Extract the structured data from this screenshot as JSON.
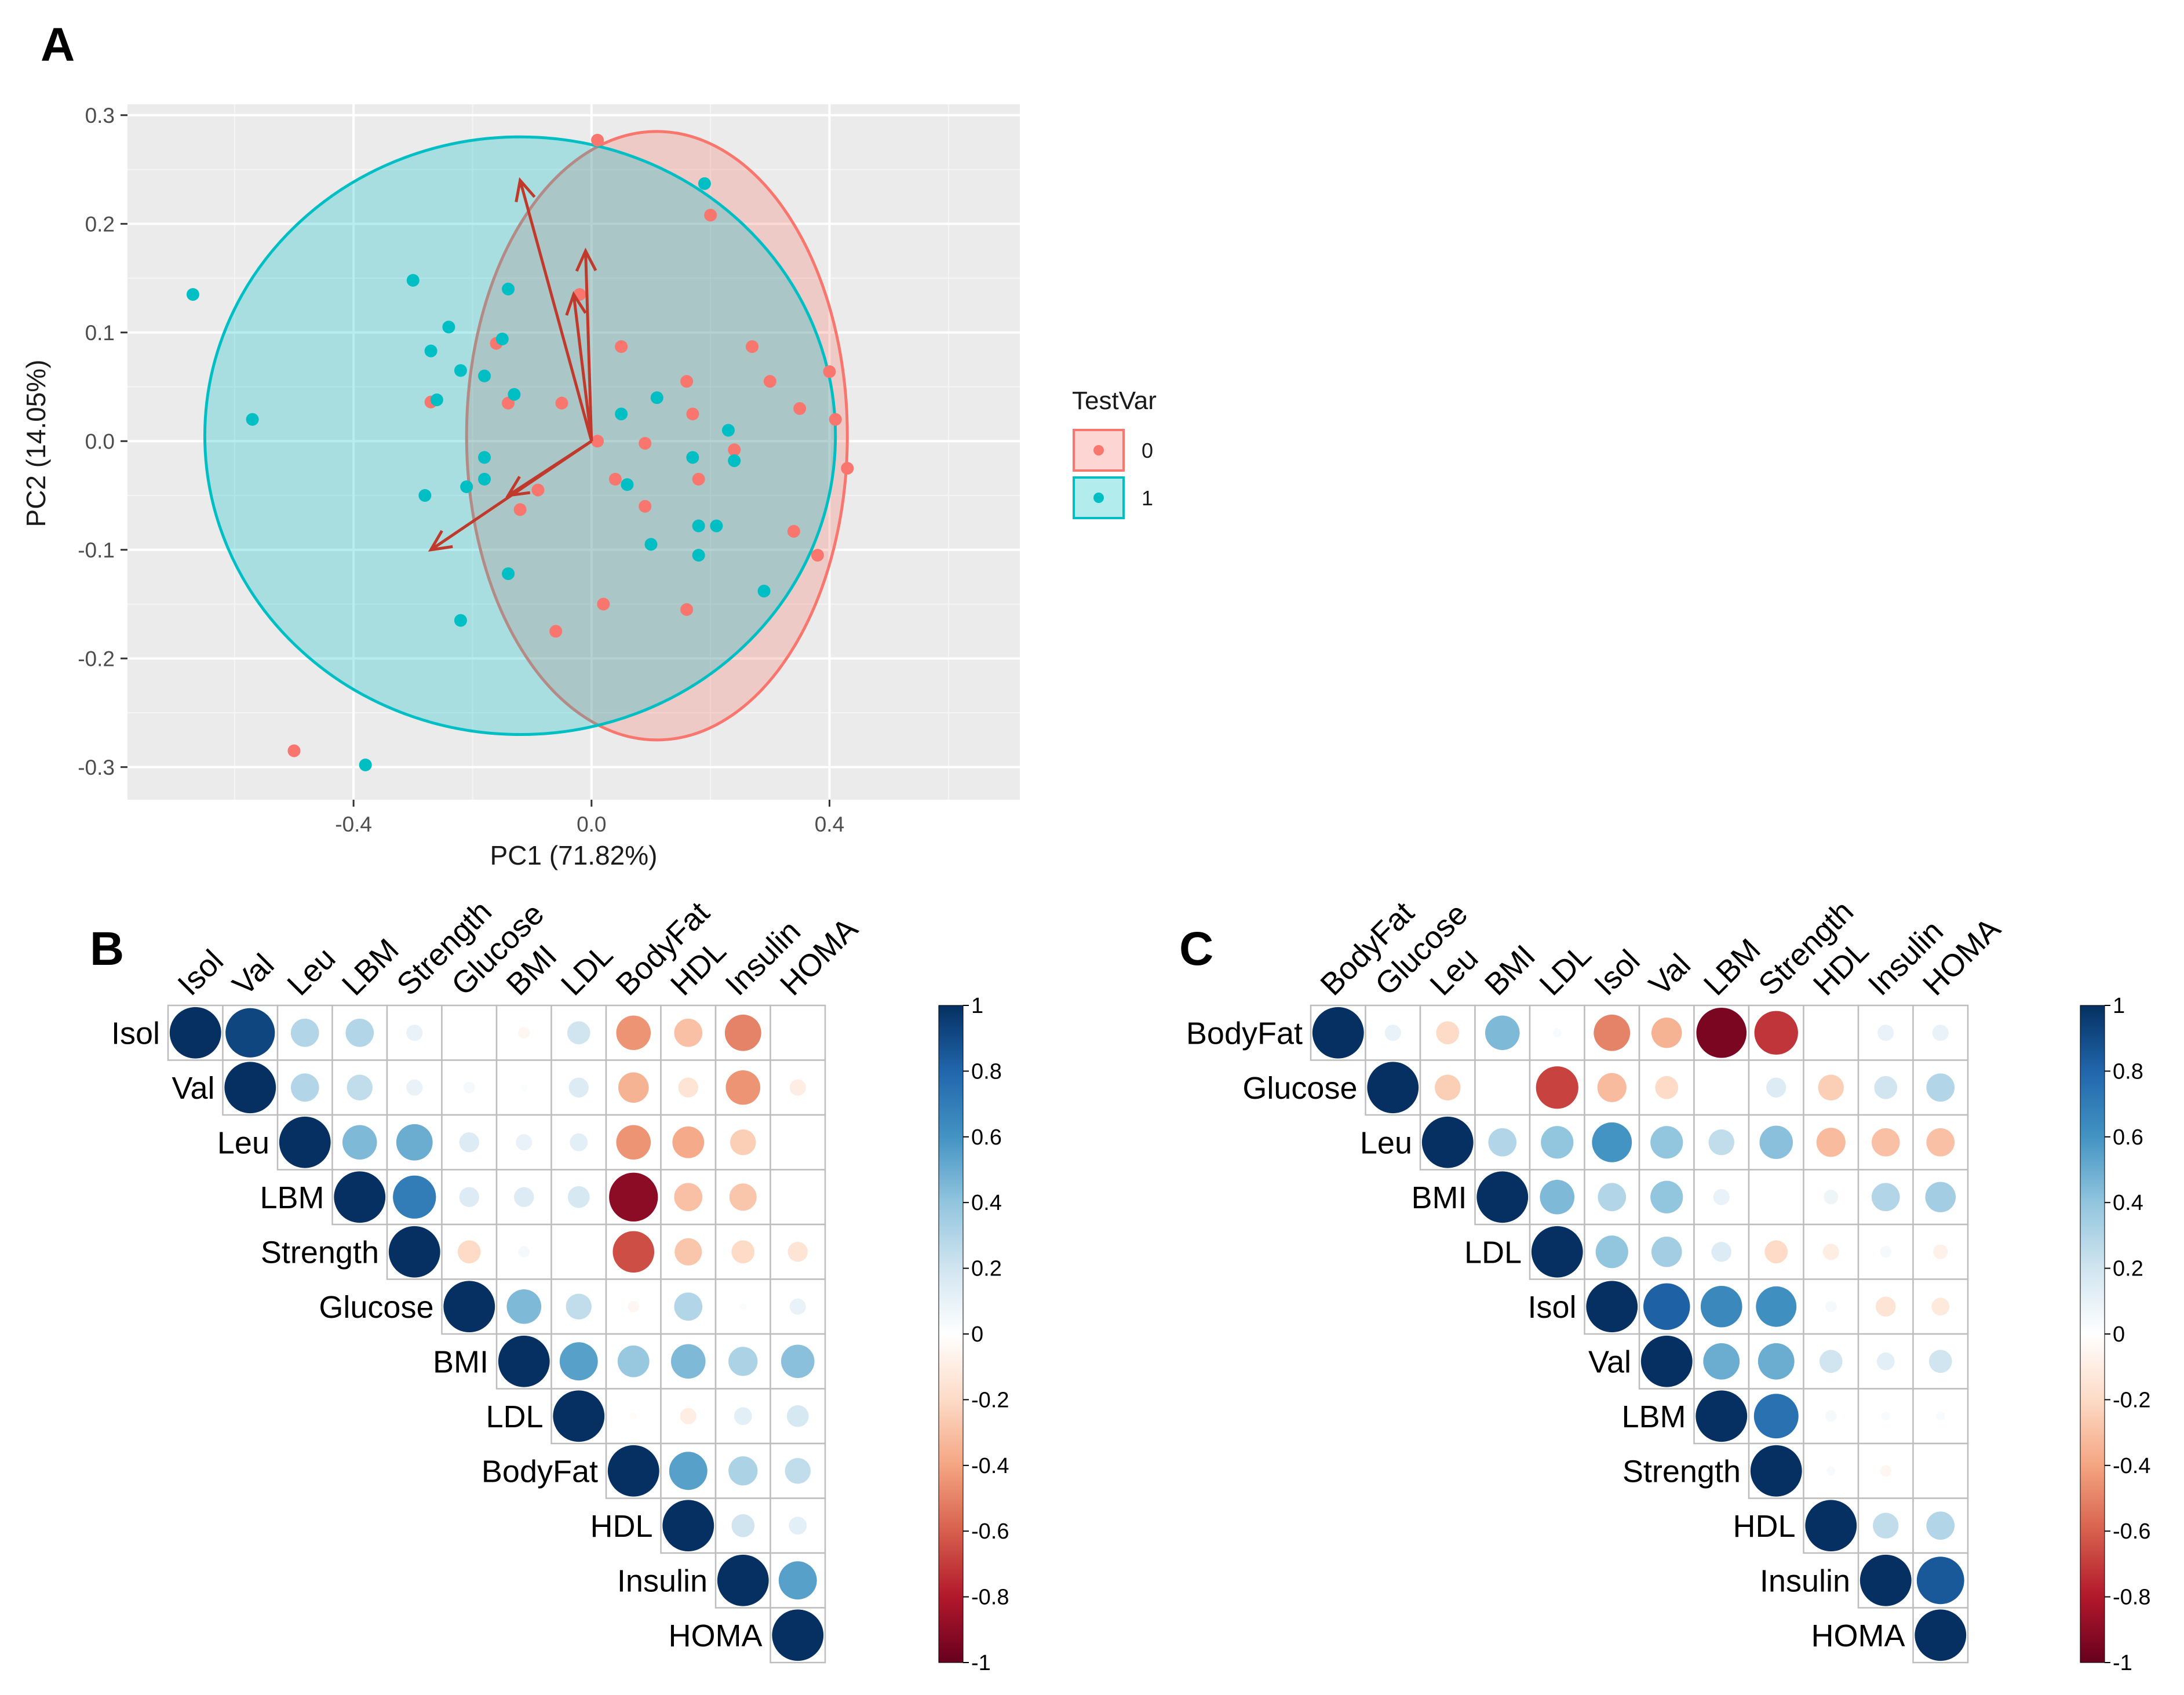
{
  "colors": {
    "group0": "#F8766D",
    "group1": "#00BFC4",
    "arrow": "#C0392B",
    "panel_bg": "#EBEBEB",
    "grid": "#FFFFFF",
    "cell_border": "#BDBDBD"
  },
  "panel_letters": {
    "a": "A",
    "b": "B",
    "c": "C"
  },
  "chart_data": [
    {
      "type": "scatter",
      "panel": "A",
      "title": "",
      "xlabel": "PC1 (71.82%)",
      "ylabel": "PC2 (14.05%)",
      "xlim": [
        -0.78,
        0.72
      ],
      "ylim": [
        -0.33,
        0.31
      ],
      "xticks": [
        -0.4,
        0.0,
        0.4
      ],
      "xtick_labels": [
        "-0.4",
        "0.0",
        "0.4"
      ],
      "yticks": [
        -0.3,
        -0.2,
        -0.1,
        0.0,
        0.1,
        0.2,
        0.3
      ],
      "ytick_labels": [
        "-0.3",
        "-0.2",
        "-0.1",
        "0.0",
        "0.1",
        "0.2",
        "0.3"
      ],
      "grid": true,
      "legend": {
        "title": "TestVar",
        "position": "right",
        "entries": [
          "0",
          "1"
        ]
      },
      "series": [
        {
          "name": "0",
          "color": "#F8766D",
          "points": [
            [
              0.01,
              0.277
            ],
            [
              0.2,
              0.208
            ],
            [
              -0.02,
              0.135
            ],
            [
              0.05,
              0.087
            ],
            [
              -0.16,
              0.09
            ],
            [
              0.27,
              0.087
            ],
            [
              0.4,
              0.064
            ],
            [
              0.3,
              0.055
            ],
            [
              0.16,
              0.055
            ],
            [
              -0.27,
              0.036
            ],
            [
              -0.05,
              0.035
            ],
            [
              -0.14,
              0.035
            ],
            [
              0.35,
              0.03
            ],
            [
              0.41,
              0.02
            ],
            [
              0.17,
              0.025
            ],
            [
              0.01,
              0.0
            ],
            [
              0.09,
              -0.002
            ],
            [
              0.24,
              -0.008
            ],
            [
              0.43,
              -0.025
            ],
            [
              0.18,
              -0.035
            ],
            [
              0.04,
              -0.035
            ],
            [
              -0.09,
              -0.045
            ],
            [
              0.09,
              -0.06
            ],
            [
              -0.12,
              -0.063
            ],
            [
              0.34,
              -0.083
            ],
            [
              0.38,
              -0.105
            ],
            [
              0.02,
              -0.15
            ],
            [
              0.16,
              -0.155
            ],
            [
              -0.06,
              -0.175
            ],
            [
              -0.5,
              -0.285
            ]
          ],
          "ellipse": {
            "center": [
              0.11,
              0.005
            ],
            "semi_axes": [
              0.32,
              0.28
            ],
            "rotation_deg": 0
          }
        },
        {
          "name": "1",
          "color": "#00BFC4",
          "points": [
            [
              0.19,
              0.237
            ],
            [
              -0.67,
              0.135
            ],
            [
              -0.3,
              0.148
            ],
            [
              -0.14,
              0.14
            ],
            [
              -0.24,
              0.105
            ],
            [
              -0.15,
              0.094
            ],
            [
              -0.27,
              0.083
            ],
            [
              -0.22,
              0.065
            ],
            [
              -0.18,
              0.06
            ],
            [
              -0.13,
              0.043
            ],
            [
              -0.26,
              0.038
            ],
            [
              -0.57,
              0.02
            ],
            [
              0.05,
              0.025
            ],
            [
              0.11,
              0.04
            ],
            [
              0.23,
              0.01
            ],
            [
              0.17,
              -0.015
            ],
            [
              0.24,
              -0.018
            ],
            [
              -0.18,
              -0.015
            ],
            [
              -0.18,
              -0.035
            ],
            [
              -0.21,
              -0.042
            ],
            [
              0.06,
              -0.04
            ],
            [
              -0.28,
              -0.05
            ],
            [
              0.18,
              -0.078
            ],
            [
              0.21,
              -0.078
            ],
            [
              0.1,
              -0.095
            ],
            [
              0.18,
              -0.105
            ],
            [
              -0.14,
              -0.122
            ],
            [
              0.29,
              -0.138
            ],
            [
              -0.22,
              -0.165
            ],
            [
              -0.38,
              -0.298
            ]
          ],
          "ellipse": {
            "center": [
              -0.12,
              0.005
            ],
            "semi_axes": [
              0.53,
              0.275
            ],
            "rotation_deg": 0
          }
        }
      ],
      "loading_arrows": [
        [
          -0.12,
          0.24
        ],
        [
          -0.03,
          0.135
        ],
        [
          -0.01,
          0.175
        ],
        [
          -0.14,
          -0.05
        ],
        [
          -0.27,
          -0.1
        ]
      ],
      "arrow_origin": [
        0.0,
        0.0
      ]
    },
    {
      "type": "heatmap",
      "panel": "B",
      "style": "corrplot-circle-upper",
      "labels": [
        "Isol",
        "Val",
        "Leu",
        "LBM",
        "Strength",
        "Glucose",
        "BMI",
        "LDL",
        "BodyFat",
        "HDL",
        "Insulin",
        "HOMA"
      ],
      "colorbar": {
        "min": -1,
        "max": 1,
        "ticks": [
          "1",
          "0.8",
          "0.6",
          "0.4",
          "0.2",
          "0",
          "-0.2",
          "-0.4",
          "-0.6",
          "-0.8",
          "-1"
        ]
      },
      "matrix": [
        [
          1,
          0.92,
          0.3,
          0.3,
          0.1,
          0.0,
          -0.05,
          0.2,
          -0.45,
          -0.3,
          -0.5,
          0.0
        ],
        [
          null,
          1,
          0.3,
          0.25,
          0.1,
          0.05,
          0.02,
          0.15,
          -0.35,
          -0.15,
          -0.45,
          -0.1
        ],
        [
          null,
          null,
          1,
          0.45,
          0.5,
          0.15,
          0.1,
          0.12,
          -0.45,
          -0.38,
          -0.25,
          0.0
        ],
        [
          null,
          null,
          null,
          1,
          0.7,
          0.15,
          0.15,
          0.18,
          -0.9,
          -0.3,
          -0.28,
          0.0
        ],
        [
          null,
          null,
          null,
          null,
          1,
          -0.2,
          0.05,
          0.0,
          -0.65,
          -0.28,
          -0.2,
          -0.15
        ],
        [
          null,
          null,
          null,
          null,
          null,
          1,
          0.45,
          0.25,
          -0.05,
          0.3,
          0.02,
          0.1
        ],
        [
          null,
          null,
          null,
          null,
          null,
          null,
          1,
          0.55,
          0.38,
          0.45,
          0.32,
          0.42
        ],
        [
          null,
          null,
          null,
          null,
          null,
          null,
          null,
          1,
          -0.02,
          -0.1,
          0.12,
          0.18
        ],
        [
          null,
          null,
          null,
          null,
          null,
          null,
          null,
          null,
          1,
          0.55,
          0.32,
          0.25
        ],
        [
          null,
          null,
          null,
          null,
          null,
          null,
          null,
          null,
          null,
          1,
          0.2,
          0.12
        ],
        [
          null,
          null,
          null,
          null,
          null,
          null,
          null,
          null,
          null,
          null,
          1,
          0.55
        ],
        [
          null,
          null,
          null,
          null,
          null,
          null,
          null,
          null,
          null,
          null,
          null,
          1
        ]
      ]
    },
    {
      "type": "heatmap",
      "panel": "C",
      "style": "corrplot-circle-upper",
      "labels": [
        "BodyFat",
        "Glucose",
        "Leu",
        "BMI",
        "LDL",
        "Isol",
        "Val",
        "LBM",
        "Strength",
        "HDL",
        "Insulin",
        "HOMA"
      ],
      "colorbar": {
        "min": -1,
        "max": 1,
        "ticks": [
          "1",
          "0.8",
          "0.6",
          "0.4",
          "0.2",
          "0",
          "-0.2",
          "-0.4",
          "-0.6",
          "-0.8",
          "-1"
        ]
      },
      "matrix": [
        [
          1,
          0.1,
          -0.2,
          0.45,
          0.03,
          -0.5,
          -0.35,
          -0.95,
          -0.72,
          0.0,
          0.1,
          0.1
        ],
        [
          null,
          1,
          -0.25,
          0.0,
          -0.68,
          -0.32,
          -0.2,
          0.0,
          0.15,
          -0.25,
          0.2,
          0.3
        ],
        [
          null,
          null,
          1,
          0.3,
          0.4,
          0.6,
          0.4,
          0.25,
          0.42,
          -0.32,
          -0.3,
          -0.3
        ],
        [
          null,
          null,
          null,
          1,
          0.45,
          0.3,
          0.4,
          0.1,
          0.0,
          0.08,
          0.3,
          0.35
        ],
        [
          null,
          null,
          null,
          null,
          1,
          0.4,
          0.35,
          0.15,
          -0.2,
          -0.1,
          0.05,
          -0.08
        ],
        [
          null,
          null,
          null,
          null,
          null,
          1,
          0.82,
          0.65,
          0.62,
          0.05,
          -0.15,
          -0.12
        ],
        [
          null,
          null,
          null,
          null,
          null,
          null,
          1,
          0.5,
          0.5,
          0.2,
          0.12,
          0.2
        ],
        [
          null,
          null,
          null,
          null,
          null,
          null,
          null,
          1,
          0.75,
          0.05,
          0.03,
          0.03
        ],
        [
          null,
          null,
          null,
          null,
          null,
          null,
          null,
          null,
          1,
          0.03,
          -0.05,
          0.0
        ],
        [
          null,
          null,
          null,
          null,
          null,
          null,
          null,
          null,
          null,
          1,
          0.25,
          0.3
        ],
        [
          null,
          null,
          null,
          null,
          null,
          null,
          null,
          null,
          null,
          null,
          1,
          0.85
        ],
        [
          null,
          null,
          null,
          null,
          null,
          null,
          null,
          null,
          null,
          null,
          null,
          1
        ]
      ]
    }
  ]
}
